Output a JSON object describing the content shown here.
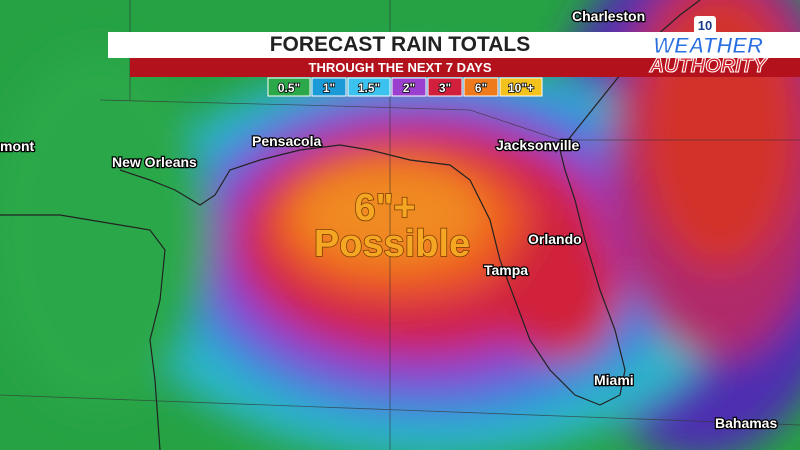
{
  "header": {
    "title": "FORECAST RAIN TOTALS",
    "subtitle": "THROUGH THE NEXT 7 DAYS"
  },
  "legend": [
    {
      "label": "0.5\"",
      "color": "#2aa84a"
    },
    {
      "label": "1\"",
      "color": "#1a9ad6"
    },
    {
      "label": "1.5\"",
      "color": "#3cc2ee"
    },
    {
      "label": "2\"",
      "color": "#9a3fcf"
    },
    {
      "label": "3\"",
      "color": "#d21f3c"
    },
    {
      "label": "6\"",
      "color": "#ee7a1c"
    },
    {
      "label": "10\"+",
      "color": "#f4c21c"
    }
  ],
  "logo": {
    "channel": "10",
    "line1": "WEATHER",
    "line2": "AUTHORITY"
  },
  "annotation": {
    "line1": "6\"+",
    "line2": "Possible"
  },
  "cities": [
    "Charleston",
    "mont",
    "New Orleans",
    "Pensacola",
    "Jacksonville",
    "Orlando",
    "Tampa",
    "Miami",
    "Bahamas"
  ]
}
